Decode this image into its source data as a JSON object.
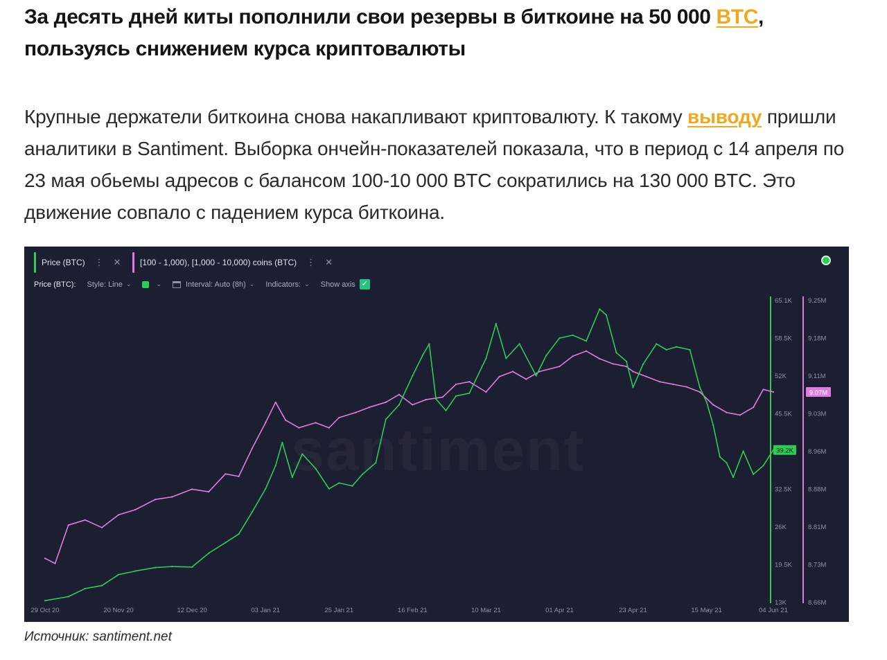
{
  "article": {
    "headline_main": "За десять дней киты пополнили свои резервы в биткоине на 50 000 ",
    "headline_link": "BTC",
    "headline_tail": ", пользуясь снижением курса криптовалюты",
    "lead_part1": "Крупные держатели биткоина снова накапливают криптовалюту. К такому ",
    "lead_link": "выводу",
    "lead_part2": " пришли аналитики в Santiment. Выборка ончейн-показателей показала, что в период с 14 апреля по 23 мая обьемы адресов с балансом 100-10 000 BTC сократились на 130 000 BTC. Это движение совпало с падением курса биткоина.",
    "caption": "Источник: santiment.net"
  },
  "chart_ui": {
    "metric_chips": [
      {
        "label": "Price (BTC)",
        "color": "#2ecc55"
      },
      {
        "label": "[100 - 1,000), [1,000 - 10,000) coins (BTC)",
        "color": "#e07ce0"
      }
    ],
    "toolbar": {
      "metric": "Price (BTC):",
      "style": "Style: Line",
      "interval": "Interval: Auto (8h)",
      "indicators": "Indicators:",
      "show_axis": "Show axis"
    },
    "watermark": "santiment",
    "colors": {
      "background": "#1c1e31",
      "price": "#2ecc55",
      "holdings": "#e07ce0",
      "axis_text": "#8d93a8"
    }
  },
  "chart_data": {
    "type": "line",
    "x_tick_labels": [
      "29 Oct 20",
      "20 Nov 20",
      "12 Dec 20",
      "03 Jan 21",
      "25 Jan 21",
      "16 Feb 21",
      "10 Mar 21",
      "01 Apr 21",
      "23 Apr 21",
      "15 May 21",
      "04 Jun 21"
    ],
    "y_left": {
      "ticks": [
        "65.1K",
        "58.5K",
        "52K",
        "45.5K",
        "39K",
        "32.5K",
        "26K",
        "19.5K",
        "13K"
      ],
      "min": 13000,
      "max": 65100,
      "current_label": "39.2K"
    },
    "y_right": {
      "ticks": [
        "9.25M",
        "9.18M",
        "9.11M",
        "9.03M",
        "8.96M",
        "8.88M",
        "8.81M",
        "8.73M",
        "8.66M"
      ],
      "min": 8660000,
      "max": 9250000,
      "current_label": "9.07M"
    },
    "series": [
      {
        "name": "Price (BTC)",
        "axis": "left",
        "points": [
          [
            "29 Oct 20",
            13200
          ],
          [
            "05 Nov 20",
            13900
          ],
          [
            "10 Nov 20",
            15300
          ],
          [
            "15 Nov 20",
            15800
          ],
          [
            "20 Nov 20",
            17700
          ],
          [
            "25 Nov 20",
            18300
          ],
          [
            "01 Dec 20",
            18900
          ],
          [
            "06 Dec 20",
            19100
          ],
          [
            "12 Dec 20",
            19000
          ],
          [
            "17 Dec 20",
            21400
          ],
          [
            "22 Dec 20",
            23200
          ],
          [
            "26 Dec 20",
            24700
          ],
          [
            "30 Dec 20",
            28500
          ],
          [
            "03 Jan 21",
            32500
          ],
          [
            "06 Jan 21",
            36500
          ],
          [
            "08 Jan 21",
            40500
          ],
          [
            "11 Jan 21",
            34500
          ],
          [
            "14 Jan 21",
            38500
          ],
          [
            "18 Jan 21",
            36000
          ],
          [
            "22 Jan 21",
            32500
          ],
          [
            "25 Jan 21",
            33500
          ],
          [
            "29 Jan 21",
            33000
          ],
          [
            "01 Feb 21",
            35000
          ],
          [
            "05 Feb 21",
            37000
          ],
          [
            "08 Feb 21",
            44500
          ],
          [
            "12 Feb 21",
            47000
          ],
          [
            "16 Feb 21",
            52000
          ],
          [
            "19 Feb 21",
            55500
          ],
          [
            "21 Feb 21",
            57500
          ],
          [
            "23 Feb 21",
            48000
          ],
          [
            "26 Feb 21",
            46000
          ],
          [
            "01 Mar 21",
            48500
          ],
          [
            "05 Mar 21",
            49000
          ],
          [
            "10 Mar 21",
            55000
          ],
          [
            "13 Mar 21",
            61000
          ],
          [
            "16 Mar 21",
            55000
          ],
          [
            "20 Mar 21",
            57500
          ],
          [
            "25 Mar 21",
            52000
          ],
          [
            "28 Mar 21",
            55500
          ],
          [
            "01 Apr 21",
            58500
          ],
          [
            "05 Apr 21",
            59000
          ],
          [
            "09 Apr 21",
            58000
          ],
          [
            "13 Apr 21",
            63500
          ],
          [
            "15 Apr 21",
            62500
          ],
          [
            "18 Apr 21",
            56000
          ],
          [
            "21 Apr 21",
            54500
          ],
          [
            "23 Apr 21",
            50000
          ],
          [
            "26 Apr 21",
            54000
          ],
          [
            "30 Apr 21",
            57500
          ],
          [
            "03 May 21",
            56500
          ],
          [
            "06 May 21",
            57000
          ],
          [
            "10 May 21",
            56500
          ],
          [
            "13 May 21",
            50000
          ],
          [
            "15 May 21",
            47500
          ],
          [
            "17 May 21",
            43500
          ],
          [
            "19 May 21",
            38000
          ],
          [
            "21 May 21",
            37000
          ],
          [
            "23 May 21",
            34500
          ],
          [
            "26 May 21",
            39000
          ],
          [
            "29 May 21",
            35000
          ],
          [
            "01 Jun 21",
            36500
          ],
          [
            "04 Jun 21",
            39200
          ]
        ]
      },
      {
        "name": "[100 - 1,000), [1,000 - 10,000) coins (BTC)",
        "axis": "right",
        "points": [
          [
            "29 Oct 20",
            8745000
          ],
          [
            "01 Nov 20",
            8735000
          ],
          [
            "05 Nov 20",
            8810000
          ],
          [
            "10 Nov 20",
            8820000
          ],
          [
            "15 Nov 20",
            8805000
          ],
          [
            "20 Nov 20",
            8830000
          ],
          [
            "25 Nov 20",
            8840000
          ],
          [
            "01 Dec 20",
            8860000
          ],
          [
            "06 Dec 20",
            8865000
          ],
          [
            "12 Dec 20",
            8880000
          ],
          [
            "17 Dec 20",
            8875000
          ],
          [
            "22 Dec 20",
            8910000
          ],
          [
            "26 Dec 20",
            8905000
          ],
          [
            "30 Dec 20",
            8960000
          ],
          [
            "03 Jan 21",
            9010000
          ],
          [
            "06 Jan 21",
            9050000
          ],
          [
            "09 Jan 21",
            9015000
          ],
          [
            "13 Jan 21",
            9000000
          ],
          [
            "18 Jan 21",
            9010000
          ],
          [
            "22 Jan 21",
            9000000
          ],
          [
            "25 Jan 21",
            9020000
          ],
          [
            "30 Jan 21",
            9030000
          ],
          [
            "03 Feb 21",
            9040000
          ],
          [
            "08 Feb 21",
            9050000
          ],
          [
            "12 Feb 21",
            9065000
          ],
          [
            "16 Feb 21",
            9045000
          ],
          [
            "20 Feb 21",
            9055000
          ],
          [
            "25 Feb 21",
            9060000
          ],
          [
            "01 Mar 21",
            9085000
          ],
          [
            "05 Mar 21",
            9090000
          ],
          [
            "10 Mar 21",
            9070000
          ],
          [
            "14 Mar 21",
            9100000
          ],
          [
            "18 Mar 21",
            9110000
          ],
          [
            "22 Mar 21",
            9095000
          ],
          [
            "26 Mar 21",
            9110000
          ],
          [
            "01 Apr 21",
            9120000
          ],
          [
            "05 Apr 21",
            9140000
          ],
          [
            "09 Apr 21",
            9150000
          ],
          [
            "13 Apr 21",
            9135000
          ],
          [
            "17 Apr 21",
            9125000
          ],
          [
            "21 Apr 21",
            9120000
          ],
          [
            "23 Apr 21",
            9110000
          ],
          [
            "27 Apr 21",
            9100000
          ],
          [
            "01 May 21",
            9090000
          ],
          [
            "05 May 21",
            9085000
          ],
          [
            "09 May 21",
            9080000
          ],
          [
            "13 May 21",
            9070000
          ],
          [
            "17 May 21",
            9045000
          ],
          [
            "21 May 21",
            9030000
          ],
          [
            "25 May 21",
            9025000
          ],
          [
            "29 May 21",
            9040000
          ],
          [
            "01 Jun 21",
            9075000
          ],
          [
            "04 Jun 21",
            9070000
          ]
        ]
      }
    ],
    "grid": false,
    "legend": "top-left"
  }
}
